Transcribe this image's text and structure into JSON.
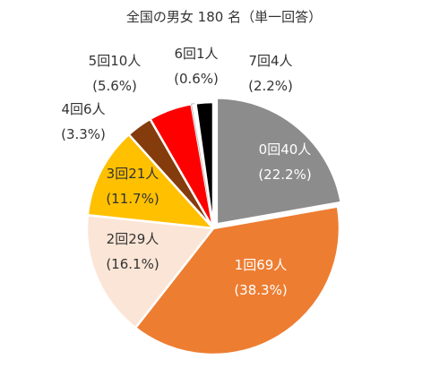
{
  "chart_data": {
    "type": "pie",
    "title": "全国の男女 180 名（単一回答）",
    "total": 180,
    "slices": [
      {
        "category": "0回",
        "count": 40,
        "label": "0回40人",
        "percent_label": "(22.2%)",
        "value": 22.2,
        "color": "#8c8c8c",
        "text_color": "#ffffff"
      },
      {
        "category": "1回",
        "count": 69,
        "label": "1回69人",
        "percent_label": "(38.3%)",
        "value": 38.3,
        "color": "#ed7d31",
        "text_color": "#ffffff"
      },
      {
        "category": "2回",
        "count": 29,
        "label": "2回29人",
        "percent_label": "(16.1%)",
        "value": 16.1,
        "color": "#fbe5d6",
        "text_color": "#333333"
      },
      {
        "category": "3回",
        "count": 21,
        "label": "3回21人",
        "percent_label": "(11.7%)",
        "value": 11.7,
        "color": "#ffc000",
        "text_color": "#333333"
      },
      {
        "category": "4回",
        "count": 6,
        "label": "4回6人",
        "percent_label": "(3.3%)",
        "value": 3.3,
        "color": "#843c0c",
        "text_color": "#333333"
      },
      {
        "category": "5回",
        "count": 10,
        "label": "5回10人",
        "percent_label": "(5.6%)",
        "value": 5.6,
        "color": "#ff0000",
        "text_color": "#333333"
      },
      {
        "category": "6回",
        "count": 1,
        "label": "6回1人",
        "percent_label": "(0.6%)",
        "value": 0.6,
        "color": "#ffffff",
        "text_color": "#333333"
      },
      {
        "category": "7回",
        "count": 4,
        "label": "7回4人",
        "percent_label": "(2.2%)",
        "value": 2.2,
        "color": "#000000",
        "text_color": "#333333"
      }
    ]
  }
}
